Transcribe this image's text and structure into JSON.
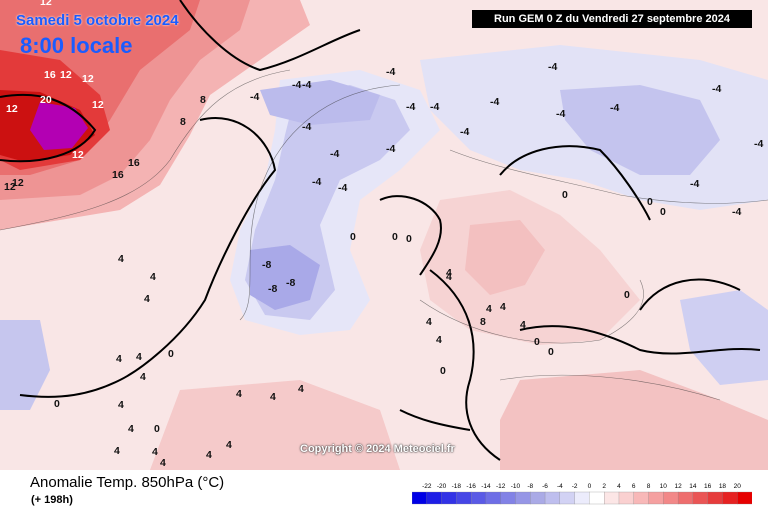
{
  "header": {
    "valid_date": "Samedi 5 octobre 2024",
    "valid_time": "8:00 locale",
    "run": "Run GEM 0 Z du Vendredi 27 septembre 2024"
  },
  "map": {
    "copyright": "Copyright © 2024 Meteociel.fr",
    "contour_labels": {
      "greenland": [
        "12",
        "16",
        "12",
        "12",
        "12",
        "20",
        "12",
        "12",
        "16",
        "16",
        "12",
        "8",
        "8"
      ],
      "atlantic_cold": [
        "-4",
        "-4",
        "-4",
        "-4",
        "-4",
        "-8",
        "-8",
        "-8",
        "-4",
        "-4"
      ],
      "scandinavia": [
        "-4",
        "-4",
        "-4",
        "-4",
        "-4",
        "-4",
        "-4",
        "-4",
        "-4",
        "-4",
        "-4"
      ],
      "europe": [
        "0",
        "0",
        "0",
        "0",
        "0",
        "0",
        "0",
        "4",
        "4",
        "4",
        "4",
        "8",
        "4",
        "4",
        "0",
        "0"
      ],
      "south": [
        "4",
        "4",
        "4",
        "4",
        "4",
        "4",
        "4",
        "4",
        "4",
        "0",
        "0",
        "4",
        "4",
        "4"
      ],
      "west": [
        "4",
        "4",
        "4",
        "4",
        "-4",
        "-4",
        "4",
        "12",
        "0",
        "0"
      ]
    }
  },
  "footer": {
    "title": "Anomalie Temp. 850hPa (°C)",
    "lead": "(+ 198h)"
  },
  "legend": {
    "labels": [
      "-22",
      "-20",
      "-18",
      "-16",
      "-14",
      "-12",
      "-10",
      "-8",
      "-6",
      "-4",
      "-2",
      "0",
      "2",
      "4",
      "6",
      "8",
      "10",
      "12",
      "14",
      "16",
      "18",
      "20"
    ],
    "colors": [
      "#0000e6",
      "#1e1ee6",
      "#3232e6",
      "#4646e6",
      "#5a5ae6",
      "#6e6ee6",
      "#8282e6",
      "#9696e6",
      "#aaaae6",
      "#bebeee",
      "#d2d2f4",
      "#ececfc",
      "#ffffff",
      "#fce6e6",
      "#fad0d0",
      "#f8b8b8",
      "#f5a0a0",
      "#f28888",
      "#ee6e6e",
      "#ea5555",
      "#e63c3c",
      "#e62222",
      "#e60000"
    ]
  }
}
